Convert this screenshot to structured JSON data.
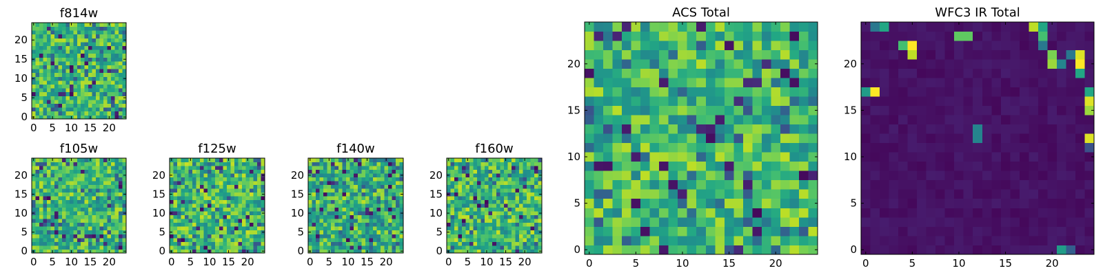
{
  "chart_data": [
    {
      "type": "heatmap",
      "title": "f814w",
      "xlim": [
        -0.5,
        24.5
      ],
      "ylim": [
        -0.5,
        24.5
      ],
      "xticks": [
        0,
        5,
        10,
        15,
        20
      ],
      "yticks": [
        0,
        5,
        10,
        15,
        20
      ],
      "colormap": "viridis",
      "grid": false,
      "palette": {
        "low": "#440154",
        "mid": "#21918c",
        "high": "#fde725"
      },
      "level_range": [
        0.45,
        0.9
      ]
    },
    {
      "type": "heatmap",
      "title": "f105w",
      "xlim": [
        -0.5,
        24.5
      ],
      "ylim": [
        -0.5,
        24.5
      ],
      "xticks": [
        0,
        5,
        10,
        15,
        20
      ],
      "yticks": [
        0,
        5,
        10,
        15,
        20
      ],
      "colormap": "viridis",
      "grid": false,
      "level_range": [
        0.45,
        0.9
      ]
    },
    {
      "type": "heatmap",
      "title": "f125w",
      "xlim": [
        -0.5,
        24.5
      ],
      "ylim": [
        -0.5,
        24.5
      ],
      "xticks": [
        0,
        5,
        10,
        15,
        20
      ],
      "yticks": [
        0,
        5,
        10,
        15,
        20
      ],
      "colormap": "viridis",
      "grid": false,
      "level_range": [
        0.45,
        0.92
      ]
    },
    {
      "type": "heatmap",
      "title": "f140w",
      "xlim": [
        -0.5,
        24.5
      ],
      "ylim": [
        -0.5,
        24.5
      ],
      "xticks": [
        0,
        5,
        10,
        15,
        20
      ],
      "yticks": [
        0,
        5,
        10,
        15,
        20
      ],
      "colormap": "viridis",
      "grid": false,
      "level_range": [
        0.4,
        0.9
      ]
    },
    {
      "type": "heatmap",
      "title": "f160w",
      "xlim": [
        -0.5,
        24.5
      ],
      "ylim": [
        -0.5,
        24.5
      ],
      "xticks": [
        0,
        5,
        10,
        15,
        20
      ],
      "yticks": [
        0,
        5,
        10,
        15,
        20
      ],
      "colormap": "viridis",
      "grid": false,
      "level_range": [
        0.45,
        0.92
      ]
    },
    {
      "type": "heatmap",
      "title": "ACS Total",
      "xlim": [
        -0.5,
        24.5
      ],
      "ylim": [
        -0.5,
        24.5
      ],
      "xticks": [
        0,
        5,
        10,
        15,
        20
      ],
      "yticks": [
        0,
        5,
        10,
        15,
        20
      ],
      "colormap": "viridis",
      "grid": false,
      "level_range": [
        0.45,
        0.9
      ]
    },
    {
      "type": "heatmap",
      "title": "WFC3 IR Total",
      "xlim": [
        -0.5,
        24.5
      ],
      "ylim": [
        -0.5,
        24.5
      ],
      "xticks": [
        0,
        5,
        10,
        15,
        20
      ],
      "yticks": [
        0,
        5,
        10,
        15,
        20
      ],
      "colormap": "viridis",
      "grid": false,
      "background_level": 0.05,
      "bright_cells": [
        {
          "x": 2,
          "y": 24,
          "v": 0.6
        },
        {
          "x": 1,
          "y": 24,
          "v": 0.4
        },
        {
          "x": 10,
          "y": 23,
          "v": 0.75
        },
        {
          "x": 11,
          "y": 23,
          "v": 0.75
        },
        {
          "x": 4,
          "y": 22,
          "v": 0.7
        },
        {
          "x": 5,
          "y": 22,
          "v": 1.0
        },
        {
          "x": 5,
          "y": 21,
          "v": 0.9
        },
        {
          "x": 18,
          "y": 24,
          "v": 0.9
        },
        {
          "x": 19,
          "y": 24,
          "v": 0.6
        },
        {
          "x": 19,
          "y": 23,
          "v": 0.7
        },
        {
          "x": 19,
          "y": 22,
          "v": 0.4
        },
        {
          "x": 20,
          "y": 21,
          "v": 0.8
        },
        {
          "x": 20,
          "y": 20,
          "v": 0.85
        },
        {
          "x": 21,
          "y": 20,
          "v": 0.45
        },
        {
          "x": 23,
          "y": 21,
          "v": 0.95
        },
        {
          "x": 23,
          "y": 20,
          "v": 1.0
        },
        {
          "x": 23,
          "y": 19,
          "v": 0.6
        },
        {
          "x": 22,
          "y": 21,
          "v": 0.4
        },
        {
          "x": 1,
          "y": 17,
          "v": 1.0
        },
        {
          "x": 0,
          "y": 17,
          "v": 0.55
        },
        {
          "x": 24,
          "y": 17,
          "v": 0.6
        },
        {
          "x": 24,
          "y": 16,
          "v": 0.95
        },
        {
          "x": 24,
          "y": 15,
          "v": 0.85
        },
        {
          "x": 12,
          "y": 13,
          "v": 0.45
        },
        {
          "x": 12,
          "y": 12,
          "v": 0.45
        },
        {
          "x": 24,
          "y": 12,
          "v": 0.95
        },
        {
          "x": 24,
          "y": 11,
          "v": 0.25
        },
        {
          "x": 21,
          "y": 0,
          "v": 0.55
        },
        {
          "x": 22,
          "y": 0,
          "v": 0.3
        }
      ]
    }
  ]
}
